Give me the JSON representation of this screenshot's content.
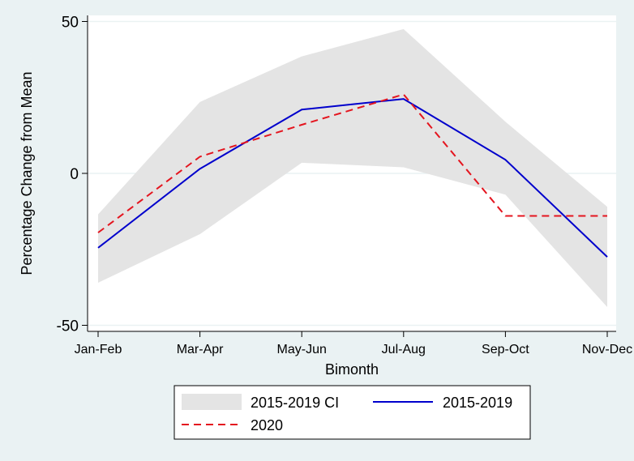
{
  "chart_data": {
    "type": "line",
    "title": "",
    "xlabel": "Bimonth",
    "ylabel": "Percentage Change from Mean",
    "categories": [
      "Jan-Feb",
      "Mar-Apr",
      "May-Jun",
      "Jul-Aug",
      "Sep-Oct",
      "Nov-Dec"
    ],
    "ylim": [
      -52,
      52
    ],
    "yticks": [
      -50,
      0,
      50
    ],
    "ytick_labels": [
      "-50",
      "0",
      "50"
    ],
    "grid": true,
    "legend_position": "bottom",
    "series": [
      {
        "name": "2015-2019 CI",
        "kind": "band",
        "color": "#e4e4e4",
        "lower": [
          -36,
          -20,
          3.5,
          2,
          -7,
          -44
        ],
        "upper": [
          -13.5,
          23.5,
          38.5,
          47.5,
          17,
          -11
        ]
      },
      {
        "name": "2015-2019",
        "kind": "line",
        "color": "#0000cc",
        "dash": "solid",
        "values": [
          -24.5,
          1.5,
          21,
          24.5,
          4.5,
          -27.5
        ]
      },
      {
        "name": "2020",
        "kind": "line",
        "color": "#e4151f",
        "dash": "dashed",
        "values": [
          -19.5,
          5.5,
          16,
          26,
          -14,
          -14
        ]
      }
    ]
  }
}
